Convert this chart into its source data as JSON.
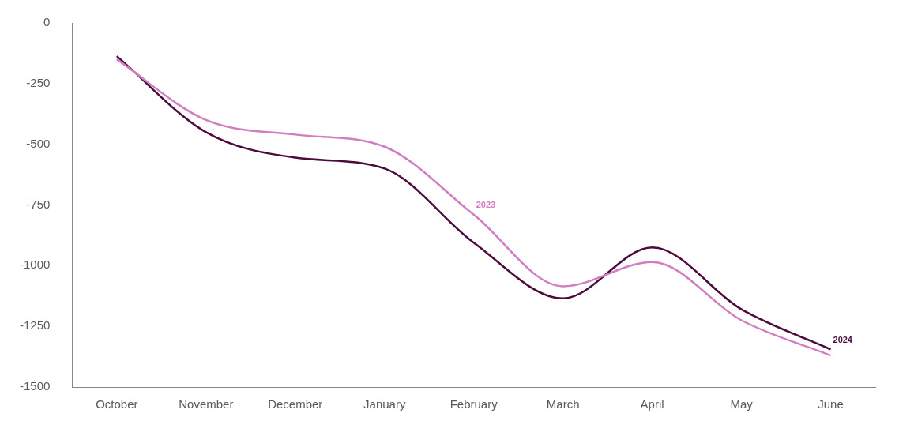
{
  "chart_data": {
    "type": "line",
    "categories": [
      "October",
      "November",
      "December",
      "January",
      "February",
      "March",
      "April",
      "May",
      "June"
    ],
    "series": [
      {
        "name": "2023",
        "color": "#d27dc0",
        "values": [
          -150,
          -400,
          -460,
          -510,
          -790,
          -1085,
          -985,
          -1225,
          -1370
        ]
      },
      {
        "name": "2024",
        "color": "#4d0a3d",
        "values": [
          -137,
          -450,
          -555,
          -600,
          -905,
          -1135,
          -925,
          -1180,
          -1345
        ]
      }
    ],
    "ylim": [
      -1500,
      0
    ],
    "yticks": [
      -1500,
      -1250,
      -1000,
      -750,
      -500,
      -250,
      0
    ],
    "grid": false,
    "legend": false,
    "marker": "none",
    "line_style": "solid"
  }
}
